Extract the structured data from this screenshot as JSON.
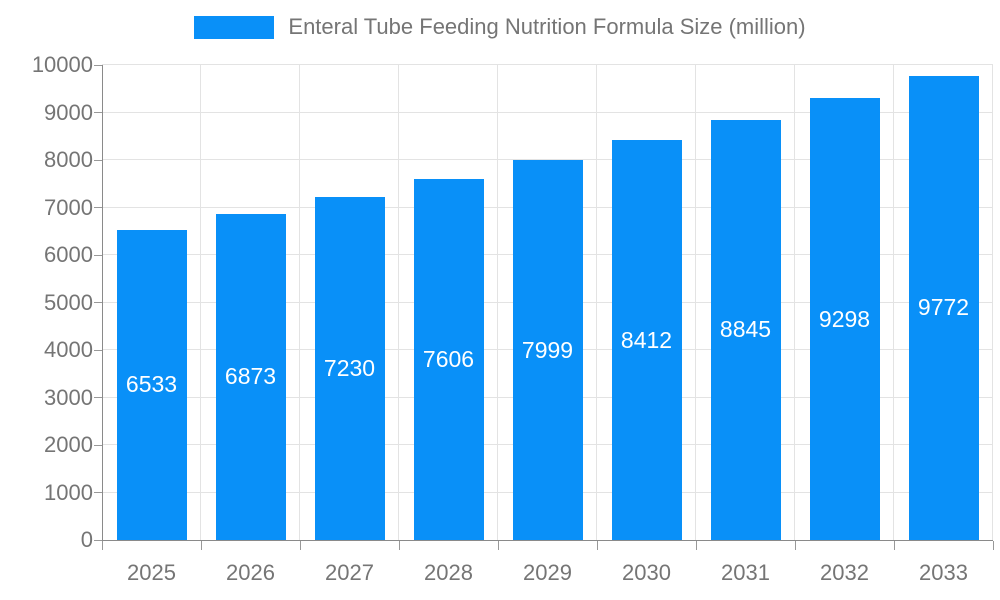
{
  "chart_data": {
    "type": "bar",
    "title": "Enteral Tube Feeding Nutrition Formula Size (million)",
    "legend_label": "Enteral Tube Feeding Nutrition Formula Size (million)",
    "legend_position": "top",
    "categories": [
      "2025",
      "2026",
      "2027",
      "2028",
      "2029",
      "2030",
      "2031",
      "2032",
      "2033"
    ],
    "series": [
      {
        "name": "Enteral Tube Feeding Nutrition Formula Size (million)",
        "values": [
          6533,
          6873,
          7230,
          7606,
          7999,
          8412,
          8845,
          9298,
          9772
        ]
      }
    ],
    "value_labels": [
      "6533",
      "6873",
      "7230",
      "7606",
      "7999",
      "8412",
      "8845",
      "9298",
      "9772"
    ],
    "xlabel": "",
    "ylabel": "",
    "ylim": [
      0,
      10000
    ],
    "ytick_interval": 1000,
    "yticks": [
      "0",
      "1000",
      "2000",
      "3000",
      "4000",
      "5000",
      "6000",
      "7000",
      "8000",
      "9000",
      "10000"
    ],
    "grid": true,
    "colors": {
      "bar": "#0990f8",
      "value_label": "#ffffff",
      "axis_text": "#757575",
      "grid_line": "#e3e3e3",
      "axis_line": "#8a8a8a",
      "tick_line": "#999999",
      "background": "#ffffff"
    }
  }
}
